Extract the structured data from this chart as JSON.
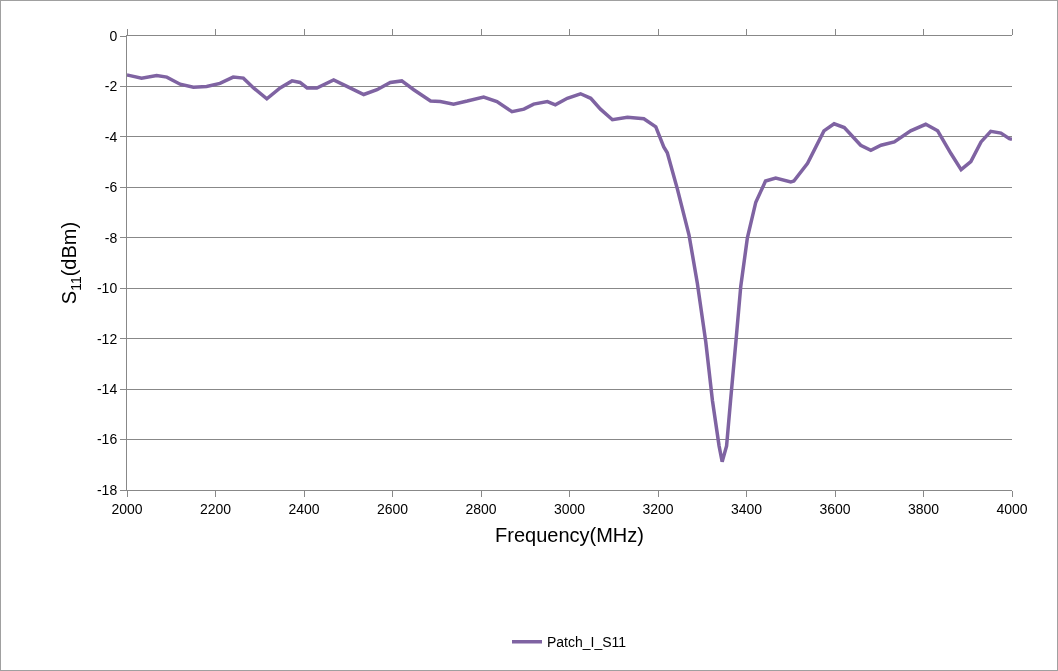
{
  "chart_data": {
    "type": "line",
    "xlabel": "Frequency(MHz)",
    "ylabel": "S$_{11}$(dBm)",
    "xlim": [
      2000,
      4000
    ],
    "xticks": [
      2000,
      2200,
      2400,
      2600,
      2800,
      3000,
      3200,
      3400,
      3600,
      3800,
      4000
    ],
    "ylim": [
      -18,
      0
    ],
    "yticks": [
      0,
      -2,
      -4,
      -6,
      -8,
      -10,
      -12,
      -14,
      -16,
      -18
    ],
    "grid": "y",
    "legend": "bottom",
    "marker": "none",
    "line_style": "solid",
    "series": [
      {
        "name": "Patch_I_S11",
        "color": "#7f63a2",
        "x": [
          2000,
          2007,
          2033,
          2067,
          2090,
          2120,
          2150,
          2180,
          2210,
          2240,
          2263,
          2286,
          2316,
          2346,
          2373,
          2391,
          2407,
          2429,
          2467,
          2497,
          2535,
          2565,
          2595,
          2621,
          2648,
          2686,
          2708,
          2738,
          2769,
          2806,
          2836,
          2870,
          2897,
          2919,
          2950,
          2968,
          2995,
          3025,
          3048,
          3070,
          3097,
          3131,
          3168,
          3195,
          3213,
          3221,
          3244,
          3270,
          3289,
          3308,
          3323,
          3338,
          3345,
          3355,
          3364,
          3376,
          3387,
          3402,
          3421,
          3443,
          3466,
          3500,
          3507,
          3538,
          3575,
          3598,
          3621,
          3658,
          3681,
          3704,
          3734,
          3771,
          3805,
          3832,
          3862,
          3885,
          3907,
          3930,
          3952,
          3975,
          3994,
          4000
        ],
        "values": [
          -1.55,
          -1.57,
          -1.67,
          -1.57,
          -1.63,
          -1.91,
          -2.03,
          -2.0,
          -1.88,
          -1.63,
          -1.67,
          -2.06,
          -2.49,
          -2.06,
          -1.78,
          -1.84,
          -2.06,
          -2.06,
          -1.74,
          -2.0,
          -2.32,
          -2.13,
          -1.84,
          -1.78,
          -2.13,
          -2.58,
          -2.6,
          -2.7,
          -2.58,
          -2.42,
          -2.6,
          -3.0,
          -2.9,
          -2.7,
          -2.6,
          -2.73,
          -2.47,
          -2.29,
          -2.47,
          -2.9,
          -3.32,
          -3.22,
          -3.28,
          -3.6,
          -4.4,
          -4.63,
          -6.08,
          -7.88,
          -9.81,
          -12.13,
          -14.45,
          -16.25,
          -16.88,
          -16.25,
          -14.45,
          -12.13,
          -9.93,
          -8.0,
          -6.59,
          -5.75,
          -5.63,
          -5.79,
          -5.75,
          -5.05,
          -3.76,
          -3.48,
          -3.63,
          -4.33,
          -4.53,
          -4.33,
          -4.2,
          -3.76,
          -3.5,
          -3.76,
          -4.66,
          -5.3,
          -4.98,
          -4.2,
          -3.78,
          -3.85,
          -4.07,
          -4.1
        ]
      }
    ]
  }
}
